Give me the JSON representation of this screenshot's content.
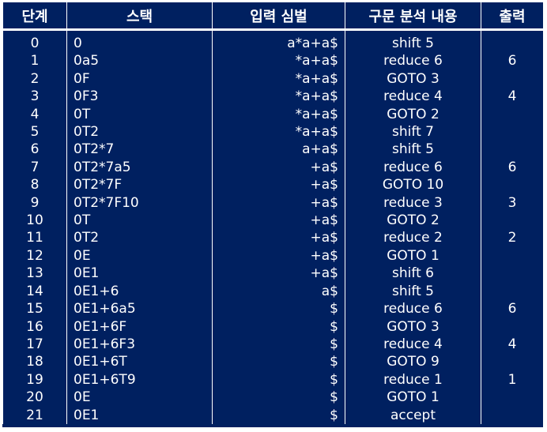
{
  "table": {
    "headers": [
      "단계",
      "스택",
      "입력 심벌",
      "구문 분석 내용",
      "출력"
    ],
    "rows": [
      {
        "step": "0",
        "stack": "0",
        "input": "a*a+a$",
        "action": "shift 5",
        "output": ""
      },
      {
        "step": "1",
        "stack": "0a5",
        "input": "*a+a$",
        "action": "reduce 6",
        "output": "6"
      },
      {
        "step": "2",
        "stack": "0F",
        "input": "*a+a$",
        "action": "GOTO 3",
        "output": ""
      },
      {
        "step": "3",
        "stack": "0F3",
        "input": "*a+a$",
        "action": "reduce 4",
        "output": "4"
      },
      {
        "step": "4",
        "stack": "0T",
        "input": "*a+a$",
        "action": "GOTO 2",
        "output": ""
      },
      {
        "step": "5",
        "stack": "0T2",
        "input": "*a+a$",
        "action": "shift 7",
        "output": ""
      },
      {
        "step": "6",
        "stack": "0T2*7",
        "input": "a+a$",
        "action": "shift 5",
        "output": ""
      },
      {
        "step": "7",
        "stack": "0T2*7a5",
        "input": "+a$",
        "action": "reduce 6",
        "output": "6"
      },
      {
        "step": "8",
        "stack": "0T2*7F",
        "input": "+a$",
        "action": "GOTO 10",
        "output": ""
      },
      {
        "step": "9",
        "stack": "0T2*7F10",
        "input": "+a$",
        "action": "reduce 3",
        "output": "3"
      },
      {
        "step": "10",
        "stack": "0T",
        "input": "+a$",
        "action": "GOTO 2",
        "output": ""
      },
      {
        "step": "11",
        "stack": "0T2",
        "input": "+a$",
        "action": "reduce 2",
        "output": "2"
      },
      {
        "step": "12",
        "stack": "0E",
        "input": "+a$",
        "action": "GOTO 1",
        "output": ""
      },
      {
        "step": "13",
        "stack": "0E1",
        "input": "+a$",
        "action": "shift 6",
        "output": ""
      },
      {
        "step": "14",
        "stack": "0E1+6",
        "input": "a$",
        "action": "shift 5",
        "output": ""
      },
      {
        "step": "15",
        "stack": "0E1+6a5",
        "input": "$",
        "action": "reduce 6",
        "output": "6"
      },
      {
        "step": "16",
        "stack": "0E1+6F",
        "input": "$",
        "action": "GOTO 3",
        "output": ""
      },
      {
        "step": "17",
        "stack": "0E1+6F3",
        "input": "$",
        "action": "reduce 4",
        "output": "4"
      },
      {
        "step": "18",
        "stack": "0E1+6T",
        "input": "$",
        "action": "GOTO 9",
        "output": ""
      },
      {
        "step": "19",
        "stack": "0E1+6T9",
        "input": "$",
        "action": "reduce 1",
        "output": "1"
      },
      {
        "step": "20",
        "stack": "0E",
        "input": "$",
        "action": "GOTO 1",
        "output": ""
      },
      {
        "step": "21",
        "stack": "0E1",
        "input": "$",
        "action": "accept",
        "output": ""
      }
    ]
  },
  "colors": {
    "background": "#002060",
    "text": "#ffffff",
    "grid": "#ffffff"
  }
}
